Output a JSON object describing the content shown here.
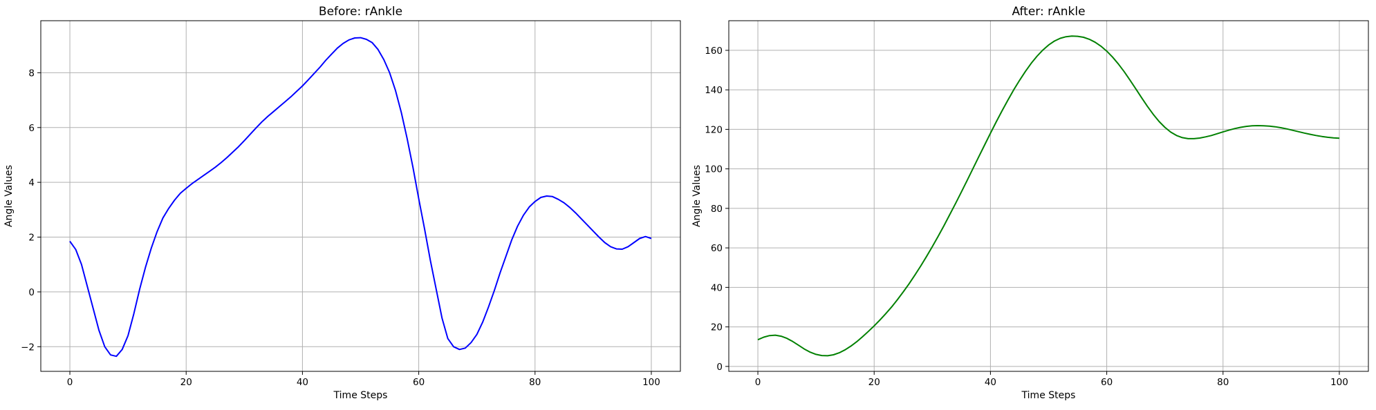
{
  "chart_data": [
    {
      "type": "line",
      "title": "Before: rAnkle",
      "xlabel": "Time Steps",
      "ylabel": "Angle Values",
      "xlim": [
        -5,
        105
      ],
      "ylim": [
        -2.9,
        9.9
      ],
      "xticks": [
        0,
        20,
        40,
        60,
        80,
        100
      ],
      "yticks": [
        -2,
        0,
        2,
        4,
        6,
        8
      ],
      "grid": true,
      "color": "#0000ff",
      "series": [
        {
          "x": [
            0,
            1,
            2,
            3,
            4,
            5,
            6,
            7,
            8,
            9,
            10,
            11,
            12,
            13,
            14,
            15,
            16,
            17,
            18,
            19,
            20,
            21,
            22,
            23,
            24,
            25,
            26,
            27,
            28,
            29,
            30,
            31,
            32,
            33,
            34,
            35,
            36,
            37,
            38,
            39,
            40,
            41,
            42,
            43,
            44,
            45,
            46,
            47,
            48,
            49,
            50,
            51,
            52,
            53,
            54,
            55,
            56,
            57,
            58,
            59,
            60,
            61,
            62,
            63,
            64,
            65,
            66,
            67,
            68,
            69,
            70,
            71,
            72,
            73,
            74,
            75,
            76,
            77,
            78,
            79,
            80,
            81,
            82,
            83,
            84,
            85,
            86,
            87,
            88,
            89,
            90,
            91,
            92,
            93,
            94,
            95,
            96,
            97,
            98,
            99,
            100
          ],
          "values": [
            1.85,
            1.55,
            1.0,
            0.2,
            -0.6,
            -1.4,
            -2.0,
            -2.3,
            -2.35,
            -2.1,
            -1.6,
            -0.8,
            0.1,
            0.9,
            1.6,
            2.2,
            2.7,
            3.05,
            3.35,
            3.6,
            3.78,
            3.95,
            4.1,
            4.25,
            4.4,
            4.55,
            4.72,
            4.9,
            5.1,
            5.3,
            5.52,
            5.75,
            5.98,
            6.2,
            6.4,
            6.58,
            6.76,
            6.94,
            7.12,
            7.32,
            7.52,
            7.74,
            7.97,
            8.2,
            8.45,
            8.68,
            8.9,
            9.07,
            9.2,
            9.27,
            9.28,
            9.22,
            9.1,
            8.85,
            8.48,
            8.0,
            7.35,
            6.55,
            5.6,
            4.55,
            3.4,
            2.3,
            1.15,
            0.1,
            -0.95,
            -1.7,
            -2.0,
            -2.1,
            -2.05,
            -1.85,
            -1.55,
            -1.1,
            -0.55,
            0.05,
            0.7,
            1.3,
            1.9,
            2.4,
            2.8,
            3.1,
            3.3,
            3.45,
            3.5,
            3.48,
            3.38,
            3.25,
            3.08,
            2.88,
            2.66,
            2.44,
            2.22,
            2.0,
            1.8,
            1.65,
            1.57,
            1.56,
            1.65,
            1.8,
            1.95,
            2.02,
            1.95
          ]
        }
      ]
    },
    {
      "type": "line",
      "title": "After: rAnkle",
      "xlabel": "Time Steps",
      "ylabel": "Angle Values",
      "xlim": [
        -5,
        105
      ],
      "ylim": [
        -2.5,
        175
      ],
      "xticks": [
        0,
        20,
        40,
        60,
        80,
        100
      ],
      "yticks": [
        0,
        20,
        40,
        60,
        80,
        100,
        120,
        140,
        160
      ],
      "grid": true,
      "color": "#008000",
      "series": [
        {
          "x": [
            0,
            1,
            2,
            3,
            4,
            5,
            6,
            7,
            8,
            9,
            10,
            11,
            12,
            13,
            14,
            15,
            16,
            17,
            18,
            19,
            20,
            21,
            22,
            23,
            24,
            25,
            26,
            27,
            28,
            29,
            30,
            31,
            32,
            33,
            34,
            35,
            36,
            37,
            38,
            39,
            40,
            41,
            42,
            43,
            44,
            45,
            46,
            47,
            48,
            49,
            50,
            51,
            52,
            53,
            54,
            55,
            56,
            57,
            58,
            59,
            60,
            61,
            62,
            63,
            64,
            65,
            66,
            67,
            68,
            69,
            70,
            71,
            72,
            73,
            74,
            75,
            76,
            77,
            78,
            79,
            80,
            81,
            82,
            83,
            84,
            85,
            86,
            87,
            88,
            89,
            90,
            91,
            92,
            93,
            94,
            95,
            96,
            97,
            98,
            99,
            100
          ],
          "values": [
            13.5,
            14.8,
            15.6,
            15.8,
            15.3,
            14.2,
            12.6,
            10.7,
            8.8,
            7.2,
            6.1,
            5.5,
            5.4,
            5.9,
            6.9,
            8.4,
            10.3,
            12.5,
            15.0,
            17.7,
            20.5,
            23.5,
            26.7,
            30.1,
            33.8,
            37.7,
            41.8,
            46.2,
            50.8,
            55.6,
            60.6,
            65.8,
            71.2,
            76.8,
            82.5,
            88.3,
            94.2,
            100.2,
            106.2,
            112.1,
            118.0,
            123.8,
            129.4,
            134.8,
            140.0,
            144.8,
            149.3,
            153.4,
            157.0,
            160.1,
            162.7,
            164.7,
            166.1,
            166.9,
            167.2,
            167.1,
            166.6,
            165.6,
            164.1,
            162.1,
            159.6,
            156.6,
            153.1,
            149.2,
            144.9,
            140.5,
            136.0,
            131.6,
            127.6,
            124.0,
            121.0,
            118.6,
            116.9,
            115.8,
            115.3,
            115.3,
            115.6,
            116.2,
            116.9,
            117.8,
            118.7,
            119.6,
            120.4,
            121.0,
            121.5,
            121.8,
            121.9,
            121.8,
            121.6,
            121.3,
            120.8,
            120.2,
            119.5,
            118.8,
            118.1,
            117.5,
            116.9,
            116.4,
            116.0,
            115.7,
            115.5
          ]
        }
      ]
    }
  ]
}
